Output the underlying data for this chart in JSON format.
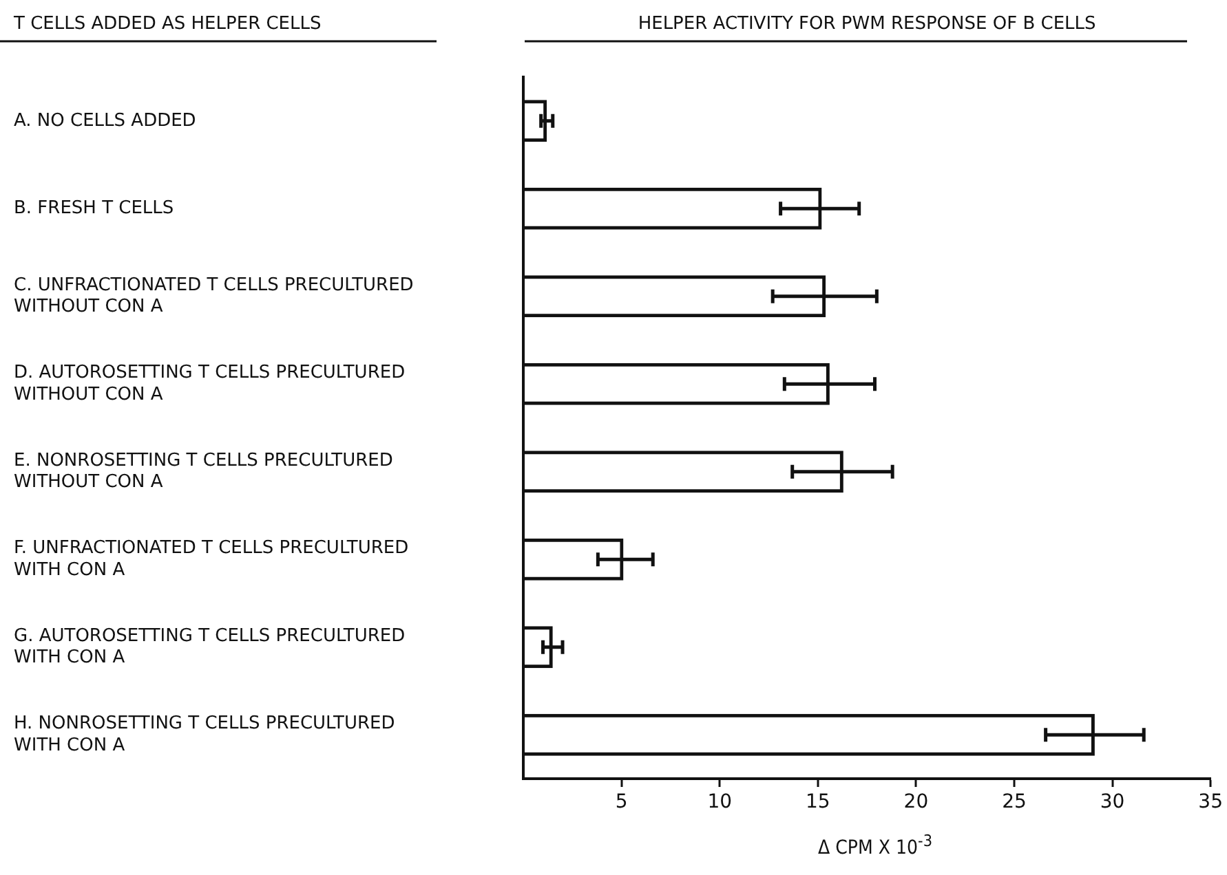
{
  "chart_data": {
    "type": "bar",
    "orientation": "horizontal",
    "title": "HELPER ACTIVITY FOR PWM RESPONSE OF B CELLS",
    "ylabel": "T CELLS ADDED AS HELPER CELLS",
    "xlabel": "Δ CPM X 10$^{-3}$",
    "categories": [
      "A. NO CELLS ADDED",
      "B. FRESH T CELLS",
      "C. UNFRACTIONATED T CELLS PRECULTURED WITHOUT CON A",
      "D. AUTOROSETTING T CELLS PRECULTURED WITHOUT CON A",
      "E. NONROSETTING T CELLS PRECULTURED WITHOUT CON A",
      "F. UNFRACTIONATED T CELLS PRECULTURED WITH CON A",
      "G. AUTOROSETTING T CELLS PRECULTURED WITH CON A",
      "H. NONROSETTING T CELLS PRECULTURED WITH CON A"
    ],
    "values": [
      1.2,
      15.2,
      15.4,
      15.6,
      16.3,
      5.1,
      1.5,
      29.1
    ],
    "errors": [
      0.3,
      [
        13.1,
        17.1
      ],
      [
        12.7,
        18.0
      ],
      [
        13.3,
        17.9
      ],
      [
        13.7,
        18.8
      ],
      [
        3.8,
        6.6
      ],
      [
        1.0,
        2.0
      ],
      [
        26.6,
        31.6
      ]
    ],
    "color": "#111111",
    "xlim": [
      0,
      35
    ],
    "xticks": [
      5,
      10,
      15,
      20,
      25,
      30,
      35
    ],
    "grid": false,
    "legend": false
  }
}
